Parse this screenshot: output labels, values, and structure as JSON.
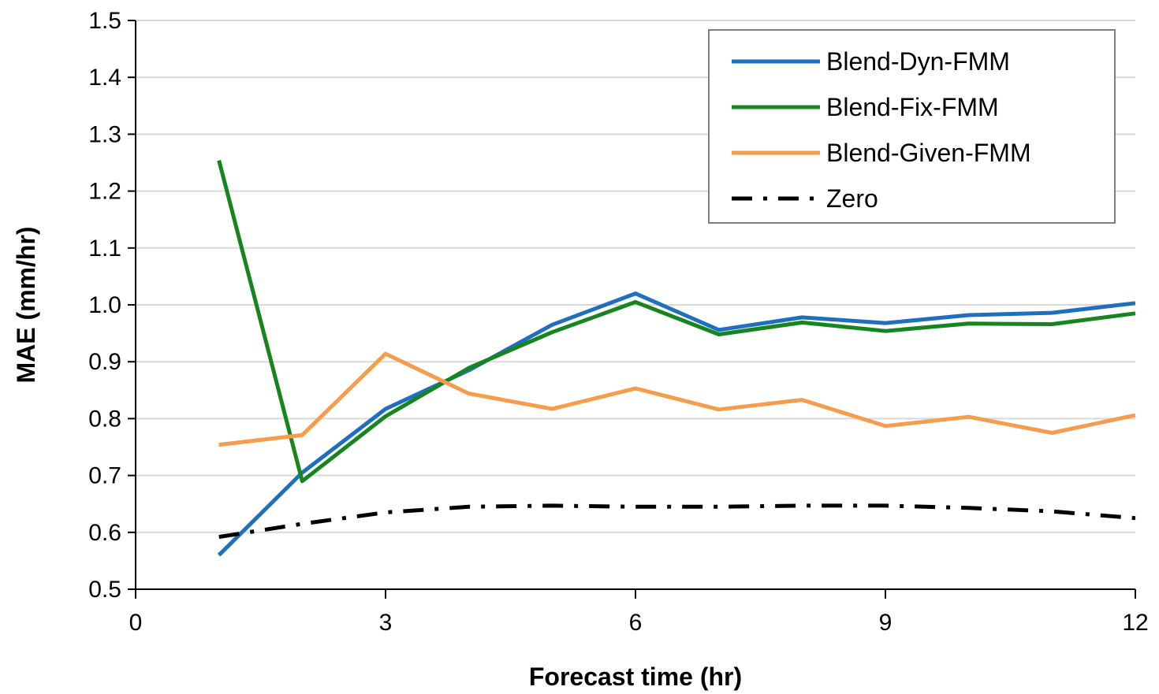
{
  "chart_data": {
    "type": "line",
    "xlabel": "Forecast time (hr)",
    "ylabel": "MAE (mm/hr)",
    "xlim": [
      0,
      12
    ],
    "ylim": [
      0.5,
      1.5
    ],
    "x_ticks": [
      0,
      3,
      6,
      9,
      12
    ],
    "x_tick_labels": [
      "0",
      "3",
      "6",
      "9",
      "12"
    ],
    "y_ticks": [
      0.5,
      0.6,
      0.7,
      0.8,
      0.9,
      1.0,
      1.1,
      1.2,
      1.3,
      1.4,
      1.5
    ],
    "y_tick_labels": [
      "0.5",
      "0.6",
      "0.7",
      "0.8",
      "0.9",
      "1.0",
      "1.1",
      "1.2",
      "1.3",
      "1.4",
      "1.5"
    ],
    "grid": "horizontal",
    "legend_position": "top-right",
    "x": [
      1,
      2,
      3,
      4,
      5,
      6,
      7,
      8,
      9,
      10,
      11,
      12
    ],
    "series": [
      {
        "name": "Blend-Dyn-FMM",
        "color": "#1f6fbf",
        "dash": "solid",
        "values": [
          0.56,
          0.705,
          0.817,
          0.885,
          0.965,
          1.02,
          0.956,
          0.978,
          0.968,
          0.982,
          0.986,
          1.003
        ]
      },
      {
        "name": "Blend-Fix-FMM",
        "color": "#17851f",
        "dash": "solid",
        "values": [
          1.254,
          0.69,
          0.804,
          0.889,
          0.952,
          1.005,
          0.948,
          0.969,
          0.954,
          0.967,
          0.966,
          0.985
        ]
      },
      {
        "name": "Blend-Given-FMM",
        "color": "#f59d4c",
        "dash": "solid",
        "values": [
          0.754,
          0.771,
          0.914,
          0.844,
          0.817,
          0.853,
          0.816,
          0.833,
          0.787,
          0.803,
          0.775,
          0.806
        ]
      },
      {
        "name": "Zero",
        "color": "#000000",
        "dash": "dash-dot",
        "values": [
          0.592,
          0.615,
          0.635,
          0.645,
          0.647,
          0.645,
          0.645,
          0.647,
          0.647,
          0.643,
          0.637,
          0.625
        ]
      }
    ]
  }
}
